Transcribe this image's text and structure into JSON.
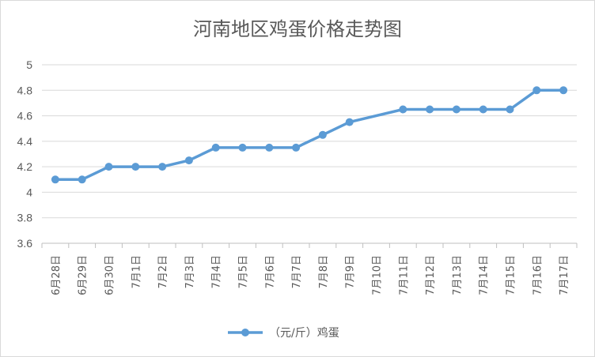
{
  "chart_data": {
    "type": "line",
    "title": "河南地区鸡蛋价格走势图",
    "xlabel": "",
    "ylabel": "",
    "categories": [
      "6月28日",
      "6月29日",
      "6月30日",
      "7月1日",
      "7月2日",
      "7月3日",
      "7月4日",
      "7月5日",
      "7月6日",
      "7月7日",
      "7月8日",
      "7月9日",
      "7月10日",
      "7月11日",
      "7月12日",
      "7月13日",
      "7月14日",
      "7月15日",
      "7月16日",
      "7月17日"
    ],
    "series": [
      {
        "name": "（元/斤）鸡蛋",
        "color": "#5b9bd5",
        "values": [
          4.1,
          4.1,
          4.2,
          4.2,
          4.2,
          4.25,
          4.35,
          4.35,
          4.35,
          4.35,
          4.45,
          4.55,
          null,
          4.65,
          4.65,
          4.65,
          4.65,
          4.65,
          4.8,
          4.8
        ]
      }
    ],
    "ylim": [
      3.6,
      5
    ],
    "yticks": [
      "3.6",
      "3.8",
      "4",
      "4.2",
      "4.4",
      "4.6",
      "4.8",
      "5"
    ],
    "grid": true,
    "legend": "bottom"
  }
}
